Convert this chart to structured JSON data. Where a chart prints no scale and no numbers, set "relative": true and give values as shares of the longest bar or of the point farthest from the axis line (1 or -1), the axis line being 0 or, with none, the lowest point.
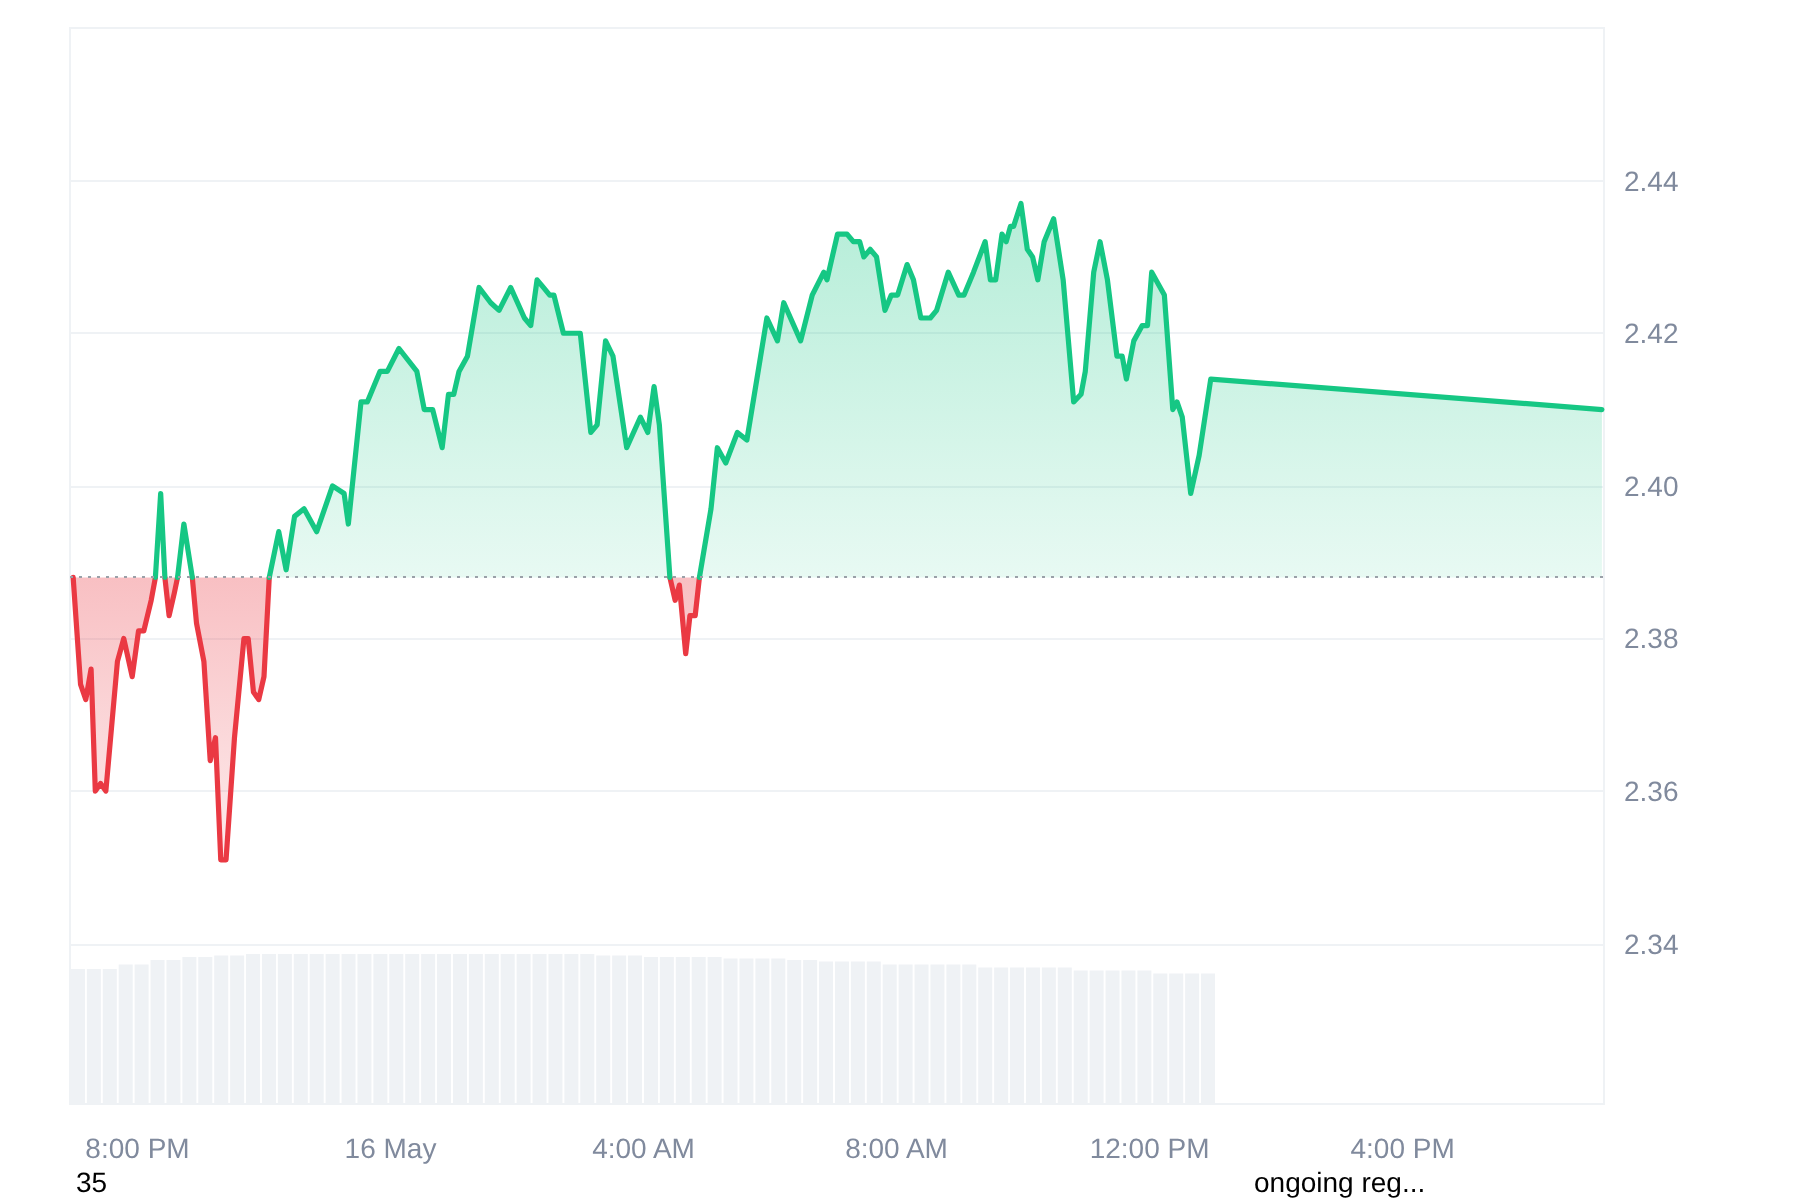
{
  "chart_data": [
    {
      "type": "area",
      "xlim": [
        "--05-15T18:56",
        "--05-16T19:11"
      ],
      "xticks": [
        {
          "value": "--05-15T20:00",
          "label": "8:00 PM"
        },
        {
          "value": "--05-16T00:00",
          "label": "16 May"
        },
        {
          "value": "--05-16T04:00",
          "label": "4:00 AM"
        },
        {
          "value": "--05-16T08:00",
          "label": "8:00 AM"
        },
        {
          "value": "--05-16T12:00",
          "label": "12:00 PM"
        },
        {
          "value": "--05-16T16:00",
          "label": "4:00 PM"
        }
      ],
      "ylim": [
        2.319,
        2.46
      ],
      "yticks": [
        2.34,
        2.36,
        2.38,
        {
          "value": 2.4,
          "label": "2.40"
        },
        2.42,
        2.44
      ],
      "grid": "y",
      "marker": "none",
      "line_style": "solid",
      "ref_lines": [
        {
          "axis": "y",
          "value": 2.388,
          "color": "#9aa0a8",
          "line_style": "dotted"
        }
      ],
      "series": [
        {
          "color": "#ea3943",
          "x": [
            "--05-15T18:59",
            "--05-15T19:06",
            "--05-15T19:11",
            "--05-15T19:16",
            "--05-15T19:20",
            "--05-15T19:25",
            "--05-15T19:30",
            "--05-15T19:41",
            "--05-15T19:47",
            "--05-15T19:55",
            "--05-15T20:01",
            "--05-15T20:06",
            "--05-15T20:13",
            "--05-15T20:17",
            "--05-15T20:22",
            "--05-15T20:26",
            "--05-15T20:30",
            "--05-15T20:35",
            "--05-15T20:38",
            "--05-15T20:44",
            "--05-15T20:52",
            "--05-15T20:56",
            "--05-15T21:03",
            "--05-15T21:09",
            "--05-15T21:14",
            "--05-15T21:19",
            "--05-15T21:24",
            "--05-15T21:32",
            "--05-15T21:41",
            "--05-15T21:45",
            "--05-15T21:50",
            "--05-15T21:55",
            "--05-15T22:00",
            "--05-15T22:05",
            "--05-16T01:00",
            "--05-16T04:25",
            "--05-16T04:30",
            "--05-16T04:34",
            "--05-16T04:40",
            "--05-16T04:44",
            "--05-16T04:49",
            "--05-16T04:53"
          ],
          "values": [
            2.388,
            2.374,
            2.372,
            2.376,
            2.36,
            2.361,
            2.36,
            2.377,
            2.38,
            2.375,
            2.381,
            2.381,
            2.385,
            2.388,
            null,
            2.388,
            2.383,
            2.386,
            2.388,
            null,
            2.388,
            2.382,
            2.377,
            2.364,
            2.367,
            2.351,
            2.351,
            2.367,
            2.38,
            2.38,
            2.373,
            2.372,
            2.375,
            2.388,
            null,
            2.388,
            2.385,
            2.387,
            2.378,
            2.383,
            2.383,
            2.388
          ]
        },
        {
          "type": "line",
          "color": "#16c784",
          "x": [
            "--05-15T20:17",
            "--05-15T20:22",
            "--05-15T20:26",
            "--05-15T20:30",
            "--05-15T20:38",
            "--05-15T20:44",
            "--05-15T20:52"
          ],
          "values": [
            2.388,
            2.399,
            2.388,
            null,
            2.388,
            2.395,
            2.388
          ]
        },
        {
          "color": "#16c784",
          "x": [
            "--05-15T22:05",
            "--05-15T22:14",
            "--05-15T22:21",
            "--05-15T22:29",
            "--05-15T22:38",
            "--05-15T22:50",
            "--05-15T23:05",
            "--05-15T23:16",
            "--05-15T23:20",
            "--05-15T23:32",
            "--05-15T23:38",
            "--05-15T23:50",
            "--05-15T23:57",
            "--05-16T00:08",
            "--05-16T00:25",
            "--05-16T00:32",
            "--05-16T00:40",
            "--05-16T00:49",
            "--05-16T00:55",
            "--05-16T01:00",
            "--05-16T01:05",
            "--05-16T01:13",
            "--05-16T01:24",
            "--05-16T01:35",
            "--05-16T01:43",
            "--05-16T01:54",
            "--05-16T02:07",
            "--05-16T02:13",
            "--05-16T02:19",
            "--05-16T02:25",
            "--05-16T02:31",
            "--05-16T02:35",
            "--05-16T02:44",
            "--05-16T02:50",
            "--05-16T03:00",
            "--05-16T03:10",
            "--05-16T03:16",
            "--05-16T03:24",
            "--05-16T03:31",
            "--05-16T03:44",
            "--05-16T03:57",
            "--05-16T04:04",
            "--05-16T04:10",
            "--05-16T04:15",
            "--05-16T04:25",
            "--05-16T04:39",
            "--05-16T04:53",
            "--05-16T05:04",
            "--05-16T05:10",
            "--05-16T05:18",
            "--05-16T05:29",
            "--05-16T05:38",
            "--05-16T05:57",
            "--05-16T06:07",
            "--05-16T06:13",
            "--05-16T06:29",
            "--05-16T06:40",
            "--05-16T06:51",
            "--05-16T06:54",
            "--05-16T07:04",
            "--05-16T07:13",
            "--05-16T07:19",
            "--05-16T07:25",
            "--05-16T07:29",
            "--05-16T07:35",
            "--05-16T07:41",
            "--05-16T07:49",
            "--05-16T07:55",
            "--05-16T08:01",
            "--05-16T08:10",
            "--05-16T08:16",
            "--05-16T08:23",
            "--05-16T08:32",
            "--05-16T08:38",
            "--05-16T08:49",
            "--05-16T08:59",
            "--05-16T09:04",
            "--05-16T09:13",
            "--05-16T09:24",
            "--05-16T09:29",
            "--05-16T09:34",
            "--05-16T09:40",
            "--05-16T09:44",
            "--05-16T09:48",
            "--05-16T09:51",
            "--05-16T09:58",
            "--05-16T10:04",
            "--05-16T10:09",
            "--05-16T10:14",
            "--05-16T10:20",
            "--05-16T10:29",
            "--05-16T10:38",
            "--05-16T10:48",
            "--05-16T10:55",
            "--05-16T10:59",
            "--05-16T11:07",
            "--05-16T11:13",
            "--05-16T11:20",
            "--05-16T11:29",
            "--05-16T11:34",
            "--05-16T11:38",
            "--05-16T11:45",
            "--05-16T11:53",
            "--05-16T11:58",
            "--05-16T12:02",
            "--05-16T12:14",
            "--05-16T12:22",
            "--05-16T12:26",
            "--05-16T12:31",
            "--05-16T12:39",
            "--05-16T12:47",
            "--05-16T12:58",
            "--05-16T19:09"
          ],
          "values": [
            2.388,
            2.394,
            2.389,
            2.396,
            2.397,
            2.394,
            2.4,
            2.399,
            2.395,
            2.411,
            2.411,
            2.415,
            2.415,
            2.418,
            2.415,
            2.41,
            2.41,
            2.405,
            2.412,
            2.412,
            2.415,
            2.417,
            2.426,
            2.424,
            2.423,
            2.426,
            2.422,
            2.421,
            2.427,
            2.426,
            2.425,
            2.425,
            2.42,
            2.42,
            2.42,
            2.407,
            2.408,
            2.419,
            2.417,
            2.405,
            2.409,
            2.407,
            2.413,
            2.408,
            2.388,
            null,
            2.388,
            2.397,
            2.405,
            2.403,
            2.407,
            2.406,
            2.422,
            2.419,
            2.424,
            2.419,
            2.425,
            2.428,
            2.427,
            2.433,
            2.433,
            2.432,
            2.432,
            2.43,
            2.431,
            2.43,
            2.423,
            2.425,
            2.425,
            2.429,
            2.427,
            2.422,
            2.422,
            2.423,
            2.428,
            2.425,
            2.425,
            2.428,
            2.432,
            2.427,
            2.427,
            2.433,
            2.432,
            2.434,
            2.434,
            2.437,
            2.431,
            2.43,
            2.427,
            2.432,
            2.435,
            2.427,
            2.411,
            2.412,
            2.415,
            2.428,
            2.432,
            2.427,
            2.417,
            2.417,
            2.414,
            2.419,
            2.421,
            2.421,
            2.428,
            2.425,
            2.41,
            2.411,
            2.409,
            2.399,
            2.404,
            2.414,
            2.41
          ]
        }
      ],
      "annotations": [
        "35",
        "ongoing reg..."
      ]
    },
    {
      "type": "bar",
      "relative": true,
      "tick_labels": false,
      "color": "#eff2f5",
      "categories": [
        null,
        null,
        null,
        null,
        null,
        null,
        null,
        null,
        null,
        null,
        null,
        null,
        null,
        null,
        null,
        null,
        null,
        null,
        null,
        null,
        null,
        null,
        null,
        null,
        null,
        null,
        null,
        null,
        null,
        null,
        null,
        null,
        null,
        null,
        null,
        null,
        null,
        null,
        null,
        null,
        null,
        null,
        null,
        null,
        null,
        null,
        null,
        null,
        null,
        null,
        null,
        null,
        null,
        null,
        null,
        null,
        null,
        null,
        null,
        null,
        null,
        null,
        null,
        null,
        null,
        null,
        null,
        null,
        null,
        null,
        null,
        null
      ],
      "values": [
        0.9,
        0.9,
        0.9,
        0.93,
        0.93,
        0.96,
        0.96,
        0.98,
        0.98,
        0.99,
        0.99,
        1,
        1,
        1,
        1,
        1,
        1,
        1,
        1,
        1,
        1,
        1,
        1,
        1,
        1,
        1,
        1,
        1,
        1,
        1,
        1,
        1,
        1,
        0.99,
        0.99,
        0.99,
        0.98,
        0.98,
        0.98,
        0.98,
        0.98,
        0.97,
        0.97,
        0.97,
        0.97,
        0.96,
        0.96,
        0.95,
        0.95,
        0.95,
        0.95,
        0.93,
        0.93,
        0.93,
        0.93,
        0.93,
        0.93,
        0.91,
        0.91,
        0.91,
        0.91,
        0.91,
        0.91,
        0.89,
        0.89,
        0.89,
        0.89,
        0.89,
        0.87,
        0.87,
        0.87,
        0.87
      ]
    }
  ]
}
